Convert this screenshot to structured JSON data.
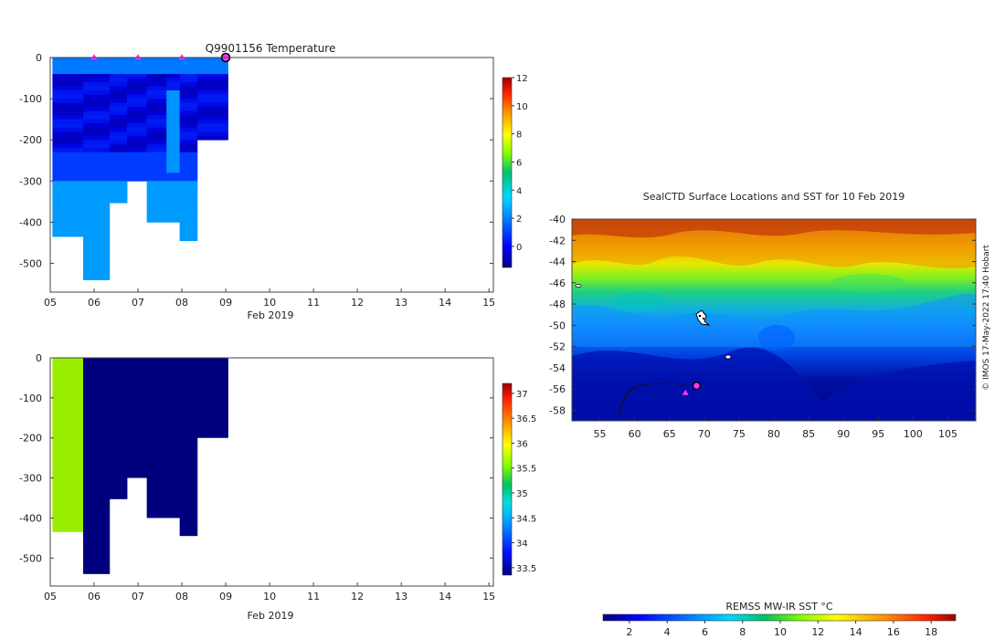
{
  "colors": {
    "temp_cmap": [
      "#00007f",
      "#0000d9",
      "#0020ff",
      "#0080ff",
      "#00d0ff",
      "#30ff c0"
    ],
    "marker_magenta": "#ff33ff",
    "salinity_band_green": "#99ee00",
    "salinity_dark": "#00007f"
  },
  "chart_data": [
    {
      "type": "heatmap",
      "title": "Q9901156  Temperature",
      "xlabel": "Feb 2019",
      "ylabel": "",
      "x_ticks": [
        "05",
        "06",
        "07",
        "08",
        "09",
        "10",
        "11",
        "12",
        "13",
        "14",
        "15"
      ],
      "y_ticks": [
        "0",
        "-100",
        "-200",
        "-300",
        "-400",
        "-500"
      ],
      "xlim": [
        5,
        15.1
      ],
      "ylim": [
        -570,
        0
      ],
      "colorbar": {
        "ticks": [
          "12",
          "10",
          "8",
          "6",
          "4",
          "2",
          "0"
        ],
        "range": [
          -1.5,
          12
        ]
      },
      "grid": false,
      "profiles": [
        {
          "t0": 5.05,
          "t1": 5.75,
          "depth": 435
        },
        {
          "t0": 5.75,
          "t1": 6.35,
          "depth": 540
        },
        {
          "t0": 6.35,
          "t1": 6.75,
          "depth": 353
        },
        {
          "t0": 6.75,
          "t1": 7.2,
          "depth": 300
        },
        {
          "t0": 7.2,
          "t1": 7.65,
          "depth": 400
        },
        {
          "t0": 7.65,
          "t1": 7.95,
          "depth": 400
        },
        {
          "t0": 7.95,
          "t1": 8.35,
          "depth": 445
        },
        {
          "t0": 8.35,
          "t1": 9.05,
          "depth": 200
        }
      ],
      "markers": [
        6.0,
        7.0,
        8.0,
        9.0
      ]
    },
    {
      "type": "heatmap",
      "title": "",
      "xlabel": "Feb 2019",
      "ylabel": "",
      "x_ticks": [
        "05",
        "06",
        "07",
        "08",
        "09",
        "10",
        "11",
        "12",
        "13",
        "14",
        "15"
      ],
      "y_ticks": [
        "0",
        "-100",
        "-200",
        "-300",
        "-400",
        "-500"
      ],
      "xlim": [
        5,
        15.1
      ],
      "ylim": [
        -570,
        0
      ],
      "colorbar": {
        "ticks": [
          "37",
          "36.5",
          "36",
          "35.5",
          "35",
          "34.5",
          "34",
          "33.5"
        ],
        "range": [
          33.35,
          37.2
        ]
      },
      "grid": false,
      "profiles": [
        {
          "t0": 5.05,
          "t1": 5.75,
          "depth": 435,
          "value": 35.5
        },
        {
          "t0": 5.75,
          "t1": 6.35,
          "depth": 540,
          "value": 33.45
        },
        {
          "t0": 6.35,
          "t1": 6.75,
          "depth": 353,
          "value": 33.45
        },
        {
          "t0": 6.75,
          "t1": 7.2,
          "depth": 300,
          "value": 33.45
        },
        {
          "t0": 7.2,
          "t1": 7.65,
          "depth": 400,
          "value": 33.45
        },
        {
          "t0": 7.65,
          "t1": 7.95,
          "depth": 400,
          "value": 33.45
        },
        {
          "t0": 7.95,
          "t1": 8.35,
          "depth": 445,
          "value": 33.45
        },
        {
          "t0": 8.35,
          "t1": 9.05,
          "depth": 200,
          "value": 33.45
        }
      ]
    },
    {
      "type": "heatmap",
      "title": "SealCTD Surface Locations and SST for 10 Feb 2019",
      "xlabel": "",
      "ylabel": "",
      "x_ticks": [
        "55",
        "60",
        "65",
        "70",
        "75",
        "80",
        "85",
        "90",
        "95",
        "100",
        "105"
      ],
      "y_ticks": [
        "-40",
        "-42",
        "-44",
        "-46",
        "-48",
        "-50",
        "-52",
        "-54",
        "-56",
        "-58"
      ],
      "xlim": [
        51,
        109
      ],
      "ylim": [
        -59,
        -40
      ],
      "colorbar": {
        "label": "REMSS MW-IR SST °C",
        "ticks": [
          "2",
          "4",
          "6",
          "8",
          "10",
          "12",
          "14",
          "16",
          "18"
        ],
        "range": [
          0.6,
          19.3
        ]
      },
      "track_end": [
        68.9,
        -55.7
      ],
      "track_markers": [
        [
          67.3,
          -56.4
        ]
      ]
    }
  ],
  "watermark": "© IMOS 17-May-2022 17:40 Hobart"
}
